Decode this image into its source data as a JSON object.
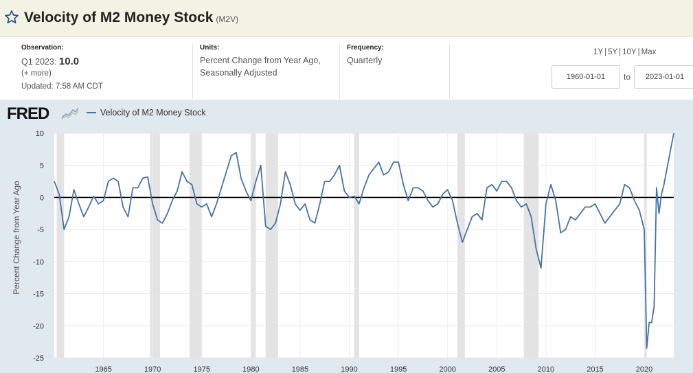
{
  "header": {
    "title": "Velocity of M2 Money Stock",
    "series_id": "(M2V)"
  },
  "meta": {
    "observation_label": "Observation:",
    "observation_period": "Q1 2023:",
    "observation_value": "10.0",
    "more_link": "(+ more)",
    "updated": "Updated: 7:58 AM CDT",
    "units_label": "Units:",
    "units_line1": "Percent Change from Year Ago,",
    "units_line2": "Seasonally Adjusted",
    "frequency_label": "Frequency:",
    "frequency_value": "Quarterly"
  },
  "ranges": [
    "1Y",
    "5Y",
    "10Y",
    "Max"
  ],
  "date_range": {
    "start": "1960-01-01",
    "to_label": "to",
    "end": "2023-01-01"
  },
  "branding": {
    "logo_text": "FRED"
  },
  "colors": {
    "series": "#4572a7",
    "recession": "#e3e3e3",
    "plot_bg": "#ffffff",
    "area_bg": "#e1e9f0"
  },
  "chart_data": {
    "type": "line",
    "ylabel": "Percent Change from Year Ago",
    "ylim": [
      -25,
      10
    ],
    "xlim": [
      1960.0,
      2023.0
    ],
    "yticks": [
      10,
      5,
      0,
      -5,
      -10,
      -15,
      -20,
      -25
    ],
    "xticks": [
      1965,
      1970,
      1975,
      1980,
      1985,
      1990,
      1995,
      2000,
      2005,
      2010,
      2015,
      2020
    ],
    "grid": true,
    "legend": "top-left",
    "recessions": [
      [
        1960.25,
        1961.0
      ],
      [
        1969.75,
        1970.75
      ],
      [
        1973.75,
        1975.0
      ],
      [
        1980.0,
        1980.5
      ],
      [
        1981.5,
        1982.75
      ],
      [
        1990.5,
        1991.0
      ],
      [
        2001.0,
        2001.75
      ],
      [
        2007.75,
        2009.25
      ],
      [
        2020.0,
        2020.25
      ]
    ],
    "series": [
      {
        "name": "Velocity of M2 Money Stock",
        "x": [
          1960.0,
          1960.5,
          1961.0,
          1961.5,
          1962.0,
          1962.5,
          1963.0,
          1963.5,
          1964.0,
          1964.5,
          1965.0,
          1965.5,
          1966.0,
          1966.5,
          1967.0,
          1967.5,
          1968.0,
          1968.5,
          1969.0,
          1969.5,
          1970.0,
          1970.5,
          1971.0,
          1971.5,
          1972.0,
          1972.5,
          1973.0,
          1973.5,
          1974.0,
          1974.5,
          1975.0,
          1975.5,
          1976.0,
          1976.5,
          1977.0,
          1977.5,
          1978.0,
          1978.5,
          1979.0,
          1979.5,
          1980.0,
          1980.5,
          1981.0,
          1981.5,
          1982.0,
          1982.5,
          1983.0,
          1983.5,
          1984.0,
          1984.5,
          1985.0,
          1985.5,
          1986.0,
          1986.5,
          1987.0,
          1987.5,
          1988.0,
          1988.5,
          1989.0,
          1989.5,
          1990.0,
          1990.5,
          1991.0,
          1991.5,
          1992.0,
          1992.5,
          1993.0,
          1993.5,
          1994.0,
          1994.5,
          1995.0,
          1995.5,
          1996.0,
          1996.5,
          1997.0,
          1997.5,
          1998.0,
          1998.5,
          1999.0,
          1999.5,
          2000.0,
          2000.5,
          2001.0,
          2001.5,
          2002.0,
          2002.5,
          2003.0,
          2003.5,
          2004.0,
          2004.5,
          2005.0,
          2005.5,
          2006.0,
          2006.5,
          2007.0,
          2007.5,
          2008.0,
          2008.5,
          2009.0,
          2009.5,
          2010.0,
          2010.5,
          2011.0,
          2011.5,
          2012.0,
          2012.5,
          2013.0,
          2013.5,
          2014.0,
          2014.5,
          2015.0,
          2015.5,
          2016.0,
          2016.5,
          2017.0,
          2017.5,
          2018.0,
          2018.5,
          2019.0,
          2019.5,
          2020.0,
          2020.25,
          2020.5,
          2020.75,
          2021.0,
          2021.25,
          2021.5,
          2021.75,
          2022.0,
          2022.5,
          2023.0
        ],
        "values": [
          2.5,
          0.5,
          -5.0,
          -3.0,
          1.2,
          -1.0,
          -3.0,
          -1.5,
          0.2,
          -1.0,
          -0.5,
          2.5,
          3.0,
          2.5,
          -1.5,
          -3.0,
          1.5,
          1.5,
          3.0,
          3.2,
          -1.0,
          -3.5,
          -4.0,
          -2.5,
          -0.5,
          1.0,
          4.0,
          2.5,
          2.0,
          -1.0,
          -1.5,
          -1.0,
          -3.0,
          -1.0,
          1.5,
          4.0,
          6.5,
          7.0,
          3.0,
          1.0,
          -0.5,
          2.5,
          5.0,
          -4.5,
          -5.0,
          -4.0,
          -1.0,
          4.0,
          2.0,
          -1.0,
          -2.0,
          -1.0,
          -3.5,
          -4.0,
          -1.0,
          2.5,
          2.5,
          3.5,
          5.0,
          1.0,
          0.0,
          0.2,
          -1.0,
          1.5,
          3.5,
          4.5,
          5.5,
          3.5,
          4.0,
          5.5,
          5.5,
          2.0,
          -0.5,
          1.5,
          1.5,
          1.0,
          -0.5,
          -1.5,
          -1.0,
          0.5,
          1.2,
          -0.5,
          -4.0,
          -7.0,
          -5.0,
          -3.0,
          -2.5,
          -3.5,
          1.5,
          2.0,
          1.0,
          2.5,
          2.5,
          1.5,
          -0.5,
          -1.5,
          -1.0,
          -3.0,
          -8.0,
          -11.0,
          -1.0,
          2.0,
          -0.5,
          -5.5,
          -5.0,
          -3.0,
          -3.5,
          -2.5,
          -1.5,
          -1.5,
          -1.0,
          -2.5,
          -4.0,
          -3.0,
          -2.0,
          -1.0,
          2.0,
          1.5,
          -0.5,
          -2.0,
          -5.0,
          -23.5,
          -19.5,
          -19.5,
          -17.0,
          1.5,
          -2.5,
          0.5,
          2.0,
          6.0,
          10.0
        ]
      }
    ]
  }
}
